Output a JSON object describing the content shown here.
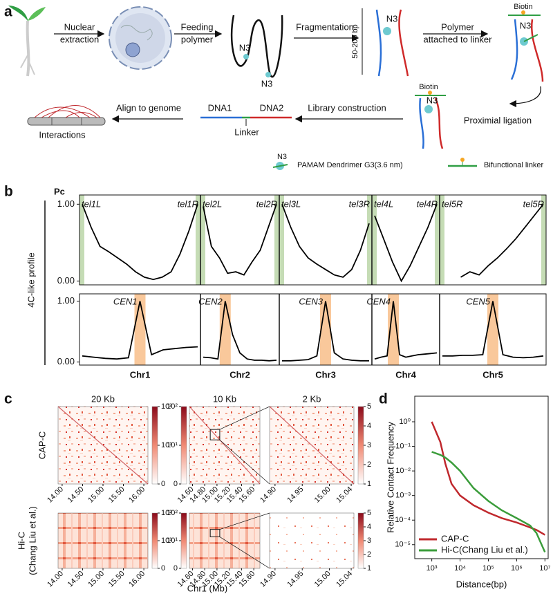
{
  "panel_a": {
    "label": "a",
    "nuclear_extraction": [
      "Nuclear",
      "extraction"
    ],
    "feeding_polymer": [
      "Feeding",
      "polymer"
    ],
    "fragmentation": "Fragmentation",
    "fragment_size": "50-200 bp",
    "polymer_attached": [
      "Polymer",
      "attached to linker"
    ],
    "proximal_ligation": "Proximial ligation",
    "library_construction": "Library construction",
    "dna1": "DNA1",
    "dna2": "DNA2",
    "linker": "Linker",
    "align_to_genome": "Align to genome",
    "interactions": "Interactions",
    "biotin": "Biotin",
    "n3": "N3",
    "legend": {
      "dendrimer": "PAMAM Dendrimer G3(3.6 nm)",
      "linker": "Bifunctional linker"
    }
  },
  "chart_data": [
    {
      "type": "profile",
      "label": "b",
      "title": "Pc",
      "ylabel": "4C-like profile",
      "ylim": [
        -0.05,
        1.12
      ],
      "yticks": [
        {
          "value": 0,
          "label": "0.00"
        },
        {
          "value": 1,
          "label": "1.00"
        }
      ],
      "color": "#000000",
      "telomere_color": "#c5dcb5",
      "centromere_color": "#f9c89b",
      "chromosomes": [
        {
          "name": "Chr1",
          "telomere_labels": [
            "tel1L",
            "tel1R"
          ],
          "profile": [
            1.0,
            0.7,
            0.45,
            0.38,
            0.3,
            0.22,
            0.12,
            0.05,
            0.02,
            0.05,
            0.12,
            0.35,
            0.65,
            1.0
          ],
          "centromere_label": "CEN1",
          "centromere_profile": [
            0.1,
            0.08,
            0.06,
            0.05,
            0.07,
            1.0,
            0.12,
            0.2,
            0.22,
            0.24,
            0.25
          ]
        },
        {
          "name": "Chr2",
          "telomere_labels": [
            "tel2L",
            "tel2R"
          ],
          "profile": [
            0.97,
            0.45,
            0.3,
            0.1,
            0.12,
            0.08,
            0.25,
            0.4,
            0.7,
            1.0
          ],
          "centromere_label": "CEN2",
          "centromere_profile": [
            0.08,
            0.07,
            0.05,
            1.0,
            0.45,
            0.15,
            0.05,
            0.03,
            0.03,
            0.02,
            0.03
          ]
        },
        {
          "name": "Chr3",
          "telomere_labels": [
            "tel3L",
            "tel3R"
          ],
          "profile": [
            1.0,
            0.7,
            0.45,
            0.3,
            0.22,
            0.15,
            0.08,
            0.05,
            0.15,
            0.4,
            0.75
          ],
          "centromere_label": "CEN3",
          "centromere_profile": [
            0.02,
            0.02,
            0.03,
            0.04,
            0.1,
            1.0,
            0.15,
            0.05,
            0.03,
            0.02,
            0.02
          ]
        },
        {
          "name": "Chr4",
          "telomere_labels": [
            "tel4L",
            "tel4R"
          ],
          "profile": [
            0.85,
            0.55,
            0.25,
            0.0,
            0.2,
            0.45,
            0.7,
            1.0
          ],
          "centromere_label": "CEN4",
          "centromere_profile": [
            0.05,
            0.08,
            0.1,
            1.0,
            0.12,
            0.08,
            0.1,
            0.12,
            0.13,
            0.14,
            0.15
          ]
        },
        {
          "name": "Chr5",
          "telomere_labels": [
            "tel5R",
            "tel5R"
          ],
          "profile": [
            0.02,
            null,
            0.05,
            0.12,
            0.08,
            0.2,
            0.3,
            0.42,
            0.55,
            0.7,
            0.85,
            1.0
          ],
          "centromere_label": "CEN5",
          "centromere_profile": [
            0.1,
            0.1,
            0.11,
            0.11,
            0.12,
            1.0,
            0.12,
            0.08,
            0.07,
            0.08,
            0.1
          ]
        }
      ]
    },
    {
      "type": "heatmap",
      "label": "c",
      "xlabel": "Chr1 (Mb)",
      "color": "#b2182b",
      "rows": [
        {
          "name": [
            "CAP-C"
          ]
        },
        {
          "name": [
            "Hi-C",
            "(Chang Liu et al.)"
          ]
        }
      ],
      "columns": [
        {
          "title": "20 Kb",
          "xlim": [
            13.9,
            16.1
          ],
          "xticks": [
            {
              "value": 14,
              "label": "14.00"
            },
            {
              "value": 14.5,
              "label": "14.50"
            },
            {
              "value": 15,
              "label": "15.00"
            },
            {
              "value": 15.5,
              "label": "15.50"
            },
            {
              "value": 16,
              "label": "16.00"
            }
          ],
          "colorbar": {
            "scale": "log",
            "lim": [
              1,
              100
            ],
            "ticks": [
              {
                "value": 100,
                "label": "10²"
              },
              {
                "value": 10,
                "label": "10¹"
              },
              {
                "value": 1,
                "label": "0"
              }
            ]
          }
        },
        {
          "title": "10 Kb",
          "xlim": [
            14.55,
            15.7
          ],
          "xticks": [
            {
              "value": 14.6,
              "label": "14.60"
            },
            {
              "value": 14.8,
              "label": "14.80"
            },
            {
              "value": 15,
              "label": "15.00"
            },
            {
              "value": 15.2,
              "label": "15.20"
            },
            {
              "value": 15.4,
              "label": "15.40"
            },
            {
              "value": 15.6,
              "label": "15.60"
            }
          ],
          "colorbar": {
            "scale": "log",
            "lim": [
              1,
              100
            ],
            "ticks": [
              {
                "value": 100,
                "label": "10²"
              },
              {
                "value": 10,
                "label": "10¹"
              },
              {
                "value": 1,
                "label": "0"
              }
            ]
          }
        },
        {
          "title": "2 Kb",
          "xlim": [
            14.89,
            15.045
          ],
          "xticks": [
            {
              "value": 14.9,
              "label": "14.90"
            },
            {
              "value": 14.95,
              "label": "14.95"
            },
            {
              "value": 15,
              "label": "15.00"
            },
            {
              "value": 15.04,
              "label": "15.04"
            }
          ],
          "colorbar": {
            "scale": "linear",
            "lim": [
              1,
              5
            ],
            "ticks": [
              5,
              4,
              3,
              2,
              1
            ]
          }
        }
      ]
    },
    {
      "type": "line",
      "label": "d",
      "xlabel": "Distance(bp)",
      "ylabel": "Relative Contact Frequency",
      "xscale": "log",
      "yscale": "log",
      "legend": "lower left",
      "xlim": [
        250,
        13000000
      ],
      "ylim": [
        2.7e-06,
        11
      ],
      "xticks": [
        {
          "value": 1000,
          "label": "10³"
        },
        {
          "value": 10000,
          "label": "10⁴"
        },
        {
          "value": 100000,
          "label": "10⁵"
        },
        {
          "value": 1000000,
          "label": "10⁶"
        },
        {
          "value": 10000000,
          "label": "10⁷"
        }
      ],
      "yticks": [
        {
          "value": 1,
          "label": "10⁰"
        },
        {
          "value": 0.1,
          "label": "10⁻¹"
        },
        {
          "value": 0.01,
          "label": "10⁻²"
        },
        {
          "value": 0.001,
          "label": "10⁻³"
        },
        {
          "value": 0.0001,
          "label": "10⁻⁴"
        },
        {
          "value": 1e-05,
          "label": "10⁻⁵"
        }
      ],
      "x": [
        1000,
        2000,
        3000,
        5000,
        10000,
        30000,
        100000,
        300000,
        1000000,
        3000000,
        5000000,
        10000000
      ],
      "series": [
        {
          "name": "CAP-C",
          "color": "#c0282d",
          "values": [
            1.0,
            0.15,
            0.02,
            0.003,
            0.001,
            0.0004,
            0.0002,
            0.00012,
            8e-05,
            5e-05,
            4e-05,
            2.5e-05
          ]
        },
        {
          "name": "Hi-C(Chang Liu et al.)",
          "color": "#3a9c3a",
          "values": [
            0.06,
            0.045,
            0.035,
            0.022,
            0.01,
            0.002,
            0.0006,
            0.00025,
            0.00012,
            6e-05,
            3e-05,
            5e-06
          ]
        }
      ]
    }
  ]
}
